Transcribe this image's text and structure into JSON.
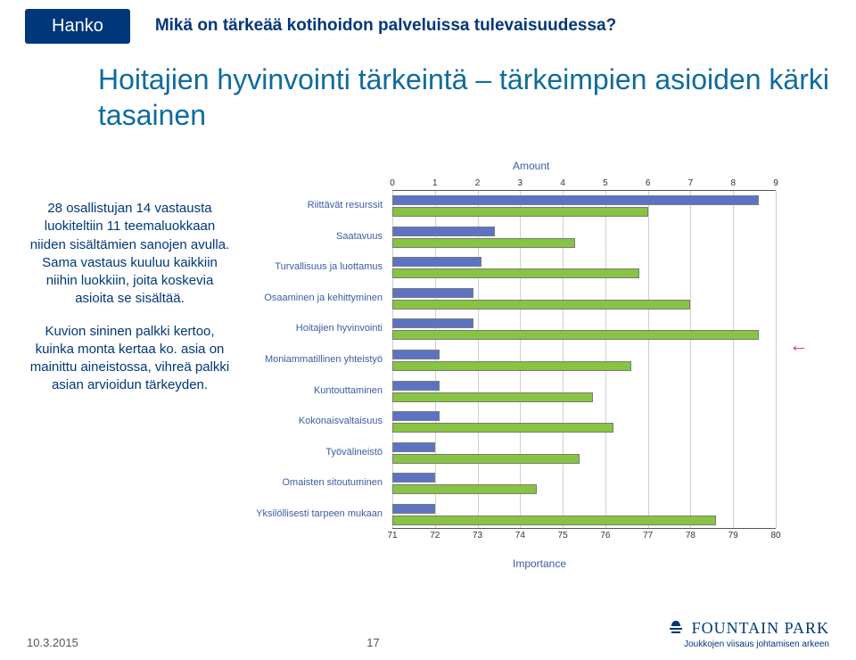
{
  "header": {
    "badge": "Hanko",
    "question": "Mikä on tärkeää kotihoidon palveluissa tulevaisuudessa?"
  },
  "title": "Hoitajien hyvinvointi tärkeintä – tärkeimpien asioiden kärki tasainen",
  "body": {
    "p1": "28 osallistujan 14 vastausta luokiteltiin 11 teemaluokkaan niiden sisältämien sanojen avulla. Sama vastaus kuuluu kaikkiin niihin luokkiin, joita koskevia asioita se sisältää.",
    "p2": "Kuvion sininen palkki kertoo, kuinka monta kertaa ko. asia on mainittu aineistossa, vihreä palkki asian arvioidun tärkeyden."
  },
  "chart": {
    "amount_label": "Amount",
    "importance_label": "Importance",
    "top_ticks": [
      "0",
      "1",
      "2",
      "3",
      "4",
      "5",
      "6",
      "7",
      "8",
      "9"
    ],
    "bottom_ticks": [
      "71",
      "72",
      "73",
      "74",
      "75",
      "76",
      "77",
      "78",
      "79",
      "80"
    ],
    "categories": [
      "Riittävät resurssit",
      "Saatavuus",
      "Turvallisuus ja luottamus",
      "Osaaminen ja kehittyminen",
      "Hoitajien hyvinvointi",
      "Moniammatillinen yhteistyö",
      "Kuntouttaminen",
      "Kokonaisvaltaisuus",
      "Työvälineistö",
      "Omaisten sitoutuminen",
      "Yksilöllisesti tarpeen mukaan"
    ],
    "blue_values": [
      8.6,
      2.4,
      2.1,
      1.9,
      1.9,
      1.1,
      1.1,
      1.1,
      1.0,
      1.0,
      1.0
    ],
    "green_values": [
      77.0,
      75.3,
      76.8,
      78.0,
      79.6,
      76.6,
      75.7,
      76.2,
      75.4,
      74.4,
      78.6
    ],
    "blue_color": "#5c73c4",
    "green_color": "#87c442",
    "grid_color": "#cfcfcf",
    "arrow_color": "#d63384"
  },
  "footer": {
    "date": "10.3.2015",
    "page": "17",
    "logo_main": "FOUNTAIN PARK",
    "logo_sub": "Joukkojen viisaus johtamisen arkeen"
  }
}
